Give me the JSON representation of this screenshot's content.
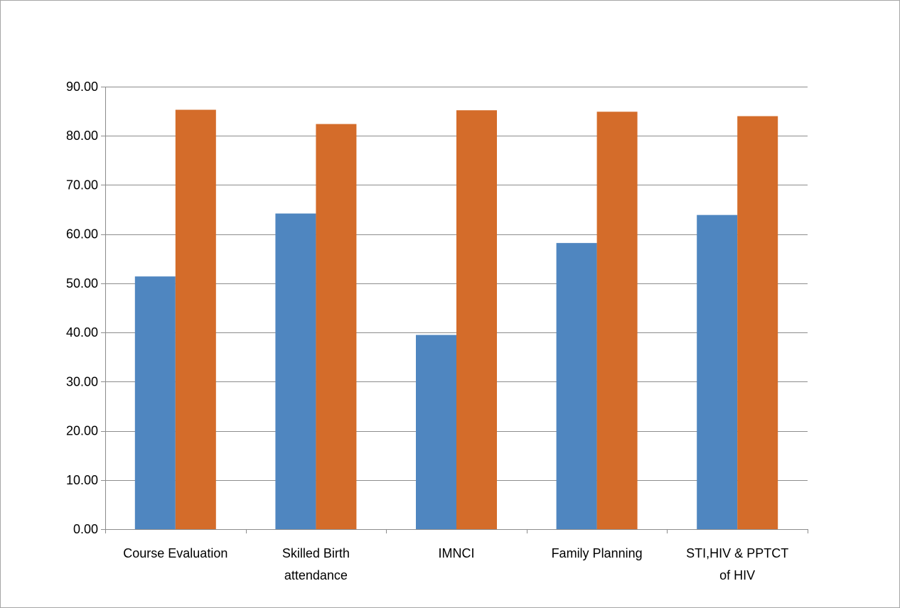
{
  "chart_data": {
    "type": "bar",
    "title": "",
    "xlabel": "",
    "ylabel": "",
    "categories": [
      [
        "Course Evaluation"
      ],
      [
        "Skilled Birth",
        "attendance"
      ],
      [
        "IMNCI"
      ],
      [
        "Family Planning"
      ],
      [
        "STI,HIV & PPTCT",
        "of HIV"
      ]
    ],
    "series": [
      {
        "values": [
          51.4,
          64.2,
          39.5,
          58.2,
          63.9
        ],
        "color": "#4f86c0"
      },
      {
        "values": [
          85.3,
          82.4,
          85.2,
          84.9,
          84.0
        ],
        "color": "#d46c2a"
      }
    ],
    "ylim": [
      0,
      90
    ],
    "yticks": [
      "0.00",
      "10.00",
      "20.00",
      "30.00",
      "40.00",
      "50.00",
      "60.00",
      "70.00",
      "80.00",
      "90.00"
    ],
    "grid": true,
    "legend": "none"
  }
}
